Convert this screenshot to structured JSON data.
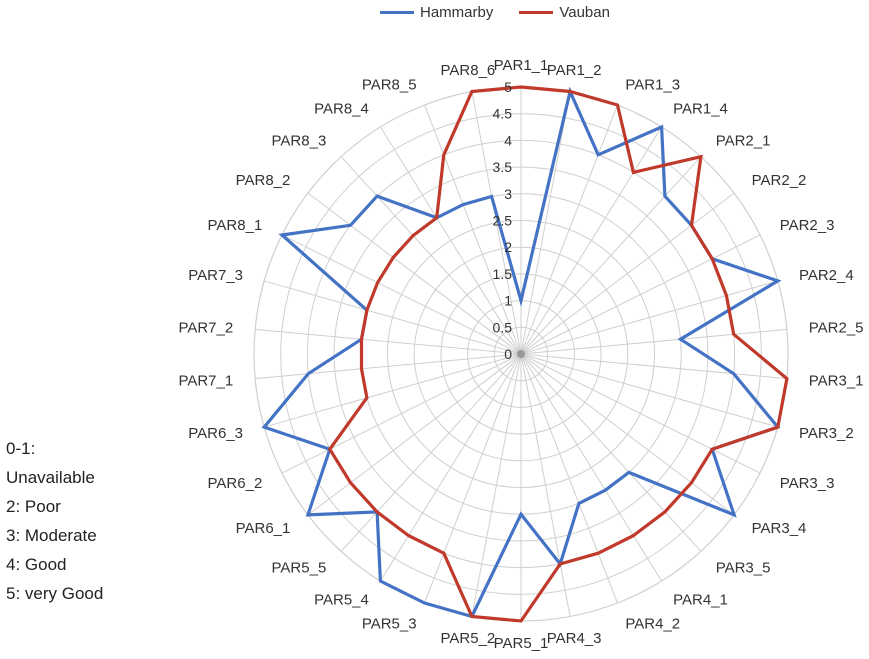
{
  "chart_data": {
    "type": "radar",
    "rmin": 0,
    "rmax": 5,
    "radial_ticks": [
      "0",
      "0.5",
      "1",
      "1.5",
      "2",
      "2.5",
      "3",
      "3.5",
      "4",
      "4.5",
      "5"
    ],
    "categories": [
      "PAR1_1",
      "PAR1_2",
      "PAR1_3",
      "PAR1_4",
      "PAR2_1",
      "PAR2_2",
      "PAR2_3",
      "PAR2_4",
      "PAR2_5",
      "PAR3_1",
      "PAR3_2",
      "PAR3_3",
      "PAR3_4",
      "PAR3_5",
      "PAR4_1",
      "PAR4_2",
      "PAR4_3",
      "PAR5_1",
      "PAR5_2",
      "PAR5_3",
      "PAR5_4",
      "PAR5_5",
      "PAR6_1",
      "PAR6_2",
      "PAR6_3",
      "PAR7_1",
      "PAR7_2",
      "PAR7_3",
      "PAR8_1",
      "PAR8_2",
      "PAR8_3",
      "PAR8_4",
      "PAR8_5",
      "PAR8_6"
    ],
    "series": [
      {
        "name": "Hammarby",
        "color": "#4472C4",
        "values": [
          1,
          5,
          4,
          5,
          4,
          4,
          4,
          5,
          3,
          4,
          5,
          4,
          5,
          3,
          3,
          3,
          4,
          3,
          5,
          5,
          5,
          4,
          5,
          4,
          5,
          4,
          3,
          3,
          5,
          4,
          4,
          3,
          3,
          3
        ]
      },
      {
        "name": "Vauban",
        "color": "#C0392B",
        "values": [
          5,
          5,
          5,
          4,
          5,
          4,
          4,
          4,
          4,
          5,
          5,
          4,
          4,
          4,
          4,
          4,
          4,
          5,
          5,
          4,
          4,
          4,
          4,
          4,
          3,
          3,
          3,
          3,
          3,
          3,
          3,
          3,
          4,
          5
        ]
      }
    ],
    "legend_position": "top"
  },
  "scale_note": [
    "0-1:",
    "Unavailable",
    "2: Poor",
    "3: Moderate",
    "4: Good",
    "5: very Good"
  ]
}
